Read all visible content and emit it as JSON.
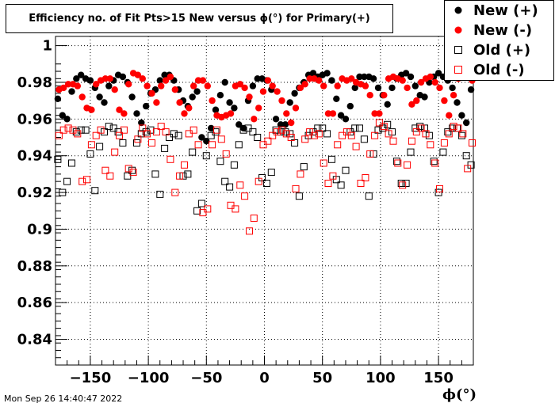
{
  "title": "Efficiency no. of Fit Pts>15 New versus ϕ(°) for Primary(+)",
  "timestamp": "Mon Sep 26 14:40:47 2022",
  "chart_data": {
    "type": "scatter",
    "title": "Efficiency no. of Fit Pts>15 New versus ϕ(°) for Primary(+)",
    "xlabel": "ϕ(°)",
    "ylabel": "",
    "xlim": [
      -180,
      180
    ],
    "ylim": [
      0.826,
      1.005
    ],
    "grid": true,
    "legend_position": "top-right",
    "xticks": [
      -150,
      -100,
      -50,
      0,
      50,
      100,
      150
    ],
    "xtick_labels": [
      "−150",
      "−100",
      "−50",
      "0",
      "50",
      "100",
      "150"
    ],
    "yticks": [
      0.84,
      0.86,
      0.88,
      0.9,
      0.92,
      0.94,
      0.96,
      0.98,
      1
    ],
    "ytick_labels": [
      "0.84",
      "0.86",
      "0.88",
      "0.9",
      "0.92",
      "0.94",
      "0.96",
      "0.98",
      "1"
    ],
    "series": [
      {
        "name": "New (+)",
        "color": "#000000",
        "marker": "filled-circle",
        "x": [
          -178,
          -174,
          -170,
          -166,
          -162,
          -158,
          -154,
          -150,
          -146,
          -142,
          -138,
          -134,
          -130,
          -126,
          -122,
          -118,
          -114,
          -110,
          -106,
          -102,
          -98,
          -94,
          -90,
          -86,
          -82,
          -78,
          -74,
          -70,
          -66,
          -62,
          -58,
          -54,
          -50,
          -46,
          -42,
          -38,
          -34,
          -30,
          -26,
          -22,
          -18,
          -14,
          -10,
          -6,
          -2,
          2,
          6,
          10,
          14,
          18,
          22,
          26,
          30,
          34,
          38,
          42,
          46,
          50,
          54,
          58,
          62,
          66,
          70,
          74,
          78,
          82,
          86,
          90,
          94,
          98,
          102,
          106,
          110,
          114,
          118,
          122,
          126,
          130,
          134,
          138,
          142,
          146,
          150,
          154,
          158,
          162,
          166,
          170,
          174,
          178
        ],
        "y": [
          0.971,
          0.962,
          0.96,
          0.975,
          0.982,
          0.984,
          0.982,
          0.981,
          0.977,
          0.972,
          0.969,
          0.978,
          0.981,
          0.984,
          0.983,
          0.98,
          0.972,
          0.963,
          0.958,
          0.967,
          0.974,
          0.976,
          0.981,
          0.984,
          0.984,
          0.981,
          0.976,
          0.97,
          0.967,
          0.972,
          0.975,
          0.95,
          0.948,
          0.955,
          0.965,
          0.973,
          0.98,
          0.969,
          0.966,
          0.957,
          0.955,
          0.97,
          0.978,
          0.982,
          0.982,
          0.981,
          0.976,
          0.96,
          0.957,
          0.957,
          0.969,
          0.974,
          0.977,
          0.98,
          0.984,
          0.985,
          0.983,
          0.984,
          0.985,
          0.981,
          0.971,
          0.962,
          0.96,
          0.967,
          0.977,
          0.983,
          0.983,
          0.983,
          0.982,
          0.977,
          0.973,
          0.968,
          0.977,
          0.982,
          0.984,
          0.985,
          0.983,
          0.978,
          0.973,
          0.972,
          0.98,
          0.983,
          0.985,
          0.983,
          0.981,
          0.977,
          0.969,
          0.962,
          0.958,
          0.976
        ]
      },
      {
        "name": "New (-)",
        "color": "#ff0000",
        "marker": "filled-circle",
        "x": [
          -177,
          -173,
          -169,
          -165,
          -161,
          -157,
          -153,
          -149,
          -145,
          -141,
          -137,
          -133,
          -129,
          -125,
          -121,
          -117,
          -113,
          -109,
          -105,
          -101,
          -97,
          -93,
          -89,
          -85,
          -81,
          -77,
          -73,
          -69,
          -65,
          -61,
          -57,
          -53,
          -49,
          -45,
          -41,
          -37,
          -33,
          -29,
          -25,
          -21,
          -17,
          -13,
          -9,
          -5,
          -1,
          3,
          7,
          11,
          15,
          19,
          23,
          27,
          31,
          35,
          39,
          43,
          47,
          51,
          55,
          59,
          63,
          67,
          71,
          75,
          79,
          83,
          87,
          91,
          95,
          99,
          103,
          107,
          111,
          115,
          119,
          123,
          127,
          131,
          135,
          139,
          143,
          147,
          151,
          155,
          159,
          163,
          167,
          171,
          175,
          179
        ],
        "y": [
          0.976,
          0.977,
          0.979,
          0.979,
          0.978,
          0.972,
          0.966,
          0.965,
          0.979,
          0.981,
          0.982,
          0.982,
          0.976,
          0.965,
          0.963,
          0.979,
          0.985,
          0.984,
          0.982,
          0.978,
          0.974,
          0.969,
          0.978,
          0.981,
          0.983,
          0.976,
          0.969,
          0.963,
          0.966,
          0.978,
          0.981,
          0.981,
          0.978,
          0.97,
          0.962,
          0.961,
          0.962,
          0.963,
          0.978,
          0.979,
          0.977,
          0.972,
          0.96,
          0.966,
          0.975,
          0.981,
          0.978,
          0.975,
          0.97,
          0.963,
          0.958,
          0.966,
          0.977,
          0.979,
          0.982,
          0.982,
          0.981,
          0.978,
          0.963,
          0.963,
          0.978,
          0.982,
          0.981,
          0.982,
          0.98,
          0.979,
          0.978,
          0.973,
          0.963,
          0.963,
          0.973,
          0.982,
          0.983,
          0.982,
          0.981,
          0.977,
          0.968,
          0.97,
          0.98,
          0.982,
          0.983,
          0.98,
          0.977,
          0.97,
          0.962,
          0.973,
          0.982,
          0.983,
          0.983,
          0.981
        ]
      },
      {
        "name": "Old (+)",
        "color": "#000000",
        "marker": "open-square",
        "x": [
          -178,
          -174,
          -170,
          -166,
          -162,
          -158,
          -154,
          -150,
          -146,
          -142,
          -138,
          -134,
          -130,
          -126,
          -122,
          -118,
          -114,
          -110,
          -106,
          -102,
          -98,
          -94,
          -90,
          -86,
          -82,
          -78,
          -74,
          -70,
          -66,
          -62,
          -58,
          -54,
          -50,
          -46,
          -42,
          -38,
          -34,
          -30,
          -26,
          -22,
          -18,
          -14,
          -10,
          -6,
          -2,
          2,
          6,
          10,
          14,
          18,
          22,
          26,
          30,
          34,
          38,
          42,
          46,
          50,
          54,
          58,
          62,
          66,
          70,
          74,
          78,
          82,
          86,
          90,
          94,
          98,
          102,
          106,
          110,
          114,
          118,
          122,
          126,
          130,
          134,
          138,
          142,
          146,
          150,
          154,
          158,
          162,
          166,
          170,
          174,
          178
        ],
        "y": [
          0.938,
          0.92,
          0.926,
          0.936,
          0.953,
          0.954,
          0.954,
          0.941,
          0.921,
          0.945,
          0.953,
          0.956,
          0.955,
          0.953,
          0.947,
          0.929,
          0.932,
          0.947,
          0.952,
          0.953,
          0.954,
          0.93,
          0.919,
          0.944,
          0.95,
          0.952,
          0.951,
          0.929,
          0.93,
          0.942,
          0.91,
          0.914,
          0.94,
          0.951,
          0.953,
          0.937,
          0.926,
          0.923,
          0.935,
          0.946,
          0.954,
          0.955,
          0.953,
          0.95,
          0.928,
          0.925,
          0.931,
          0.954,
          0.953,
          0.953,
          0.952,
          0.947,
          0.918,
          0.934,
          0.951,
          0.953,
          0.955,
          0.955,
          0.952,
          0.938,
          0.927,
          0.924,
          0.932,
          0.953,
          0.955,
          0.955,
          0.949,
          0.918,
          0.941,
          0.954,
          0.955,
          0.957,
          0.953,
          0.937,
          0.925,
          0.925,
          0.942,
          0.955,
          0.956,
          0.955,
          0.951,
          0.937,
          0.92,
          0.942,
          0.953,
          0.955,
          0.955,
          0.951,
          0.94,
          0.935
        ]
      },
      {
        "name": "Old (-)",
        "color": "#ff0000",
        "marker": "open-square",
        "x": [
          -177,
          -173,
          -169,
          -165,
          -161,
          -157,
          -153,
          -149,
          -145,
          -141,
          -137,
          -133,
          -129,
          -125,
          -121,
          -117,
          -113,
          -109,
          -105,
          -101,
          -97,
          -93,
          -89,
          -85,
          -81,
          -77,
          -73,
          -69,
          -65,
          -61,
          -57,
          -53,
          -49,
          -45,
          -41,
          -37,
          -33,
          -29,
          -25,
          -21,
          -17,
          -13,
          -9,
          -5,
          -1,
          3,
          7,
          11,
          15,
          19,
          23,
          27,
          31,
          35,
          39,
          43,
          47,
          51,
          55,
          59,
          63,
          67,
          71,
          75,
          79,
          83,
          87,
          91,
          95,
          99,
          103,
          107,
          111,
          115,
          119,
          123,
          127,
          131,
          135,
          139,
          143,
          147,
          151,
          155,
          159,
          163,
          167,
          171,
          175,
          179
        ],
        "y": [
          0.951,
          0.954,
          0.955,
          0.954,
          0.952,
          0.926,
          0.927,
          0.946,
          0.951,
          0.954,
          0.932,
          0.929,
          0.942,
          0.951,
          0.954,
          0.933,
          0.931,
          0.949,
          0.955,
          0.952,
          0.947,
          0.953,
          0.956,
          0.953,
          0.938,
          0.92,
          0.929,
          0.935,
          0.952,
          0.954,
          0.946,
          0.909,
          0.911,
          0.946,
          0.954,
          0.949,
          0.941,
          0.913,
          0.911,
          0.924,
          0.918,
          0.899,
          0.906,
          0.926,
          0.946,
          0.948,
          0.951,
          0.953,
          0.954,
          0.952,
          0.95,
          0.922,
          0.93,
          0.949,
          0.953,
          0.951,
          0.952,
          0.936,
          0.925,
          0.929,
          0.946,
          0.951,
          0.953,
          0.951,
          0.945,
          0.925,
          0.928,
          0.941,
          0.951,
          0.958,
          0.956,
          0.952,
          0.948,
          0.936,
          0.924,
          0.935,
          0.948,
          0.953,
          0.955,
          0.952,
          0.946,
          0.936,
          0.922,
          0.947,
          0.952,
          0.956,
          0.955,
          0.952,
          0.933,
          0.947
        ]
      }
    ]
  }
}
